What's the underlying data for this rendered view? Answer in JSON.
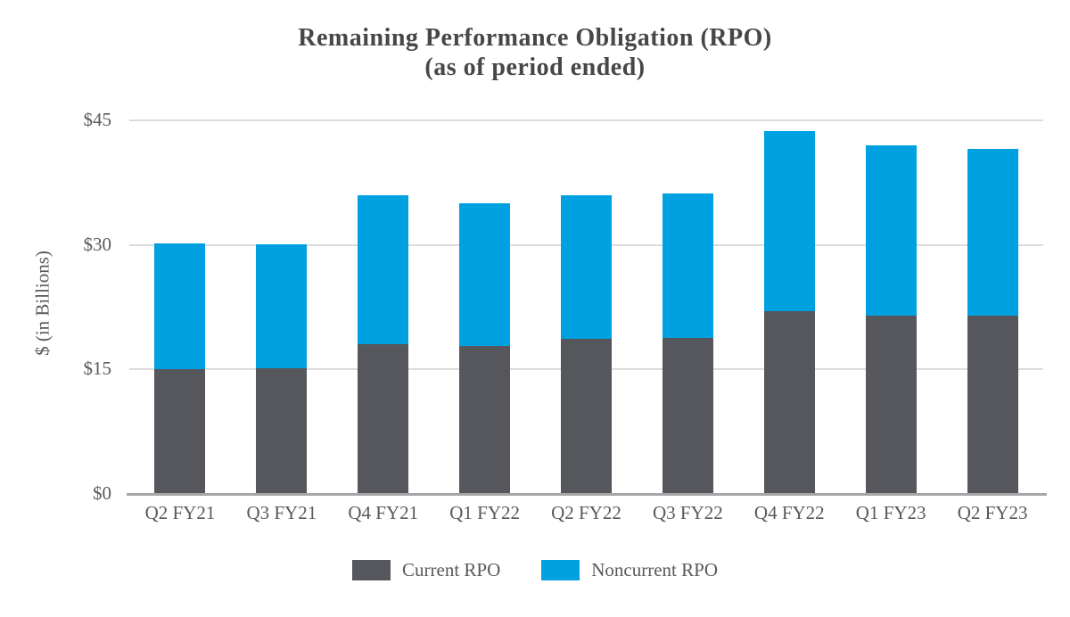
{
  "title": {
    "line1": "Remaining Performance Obligation (RPO)",
    "line2": "(as of period ended)"
  },
  "y_axis": {
    "label": "$ (in Billions)",
    "ticks": [
      {
        "label": "$45",
        "value": 45
      },
      {
        "label": "$30",
        "value": 30
      },
      {
        "label": "$15",
        "value": 15
      },
      {
        "label": "$0",
        "value": 0
      }
    ]
  },
  "legend": {
    "items": [
      {
        "label": "Current RPO",
        "series": "current"
      },
      {
        "label": "Noncurrent RPO",
        "series": "noncurrent"
      }
    ]
  },
  "colors": {
    "current": "#55575C",
    "noncurrent": "#00A1E0",
    "gridline": "#DCDCDC",
    "axis_line": "#A6A6A6",
    "axis_text": "#595959",
    "title_text": "#474747"
  },
  "chart_data": {
    "type": "bar",
    "stacked": true,
    "title": "Remaining Performance Obligation (RPO) (as of period ended)",
    "categories": [
      "Q2 FY21",
      "Q3 FY21",
      "Q4 FY21",
      "Q1 FY22",
      "Q2 FY22",
      "Q3 FY22",
      "Q4 FY22",
      "Q1 FY23",
      "Q2 FY23"
    ],
    "series": [
      {
        "name": "Current RPO",
        "color": "#55575C",
        "values": [
          15.0,
          15.2,
          18.0,
          17.8,
          18.7,
          18.8,
          22.0,
          21.5,
          21.5
        ]
      },
      {
        "name": "Noncurrent RPO",
        "color": "#00A1E0",
        "values": [
          15.2,
          14.9,
          18.0,
          17.2,
          17.3,
          17.4,
          21.7,
          20.5,
          20.1
        ]
      }
    ],
    "totals": [
      30.2,
      30.1,
      36.0,
      35.0,
      36.0,
      36.2,
      43.7,
      42.0,
      41.6
    ],
    "xlabel": "",
    "ylabel": "$ (in Billions)",
    "ylim": [
      0,
      45
    ],
    "yticks": [
      0,
      15,
      30,
      45
    ],
    "grid": true,
    "legend_position": "bottom"
  }
}
